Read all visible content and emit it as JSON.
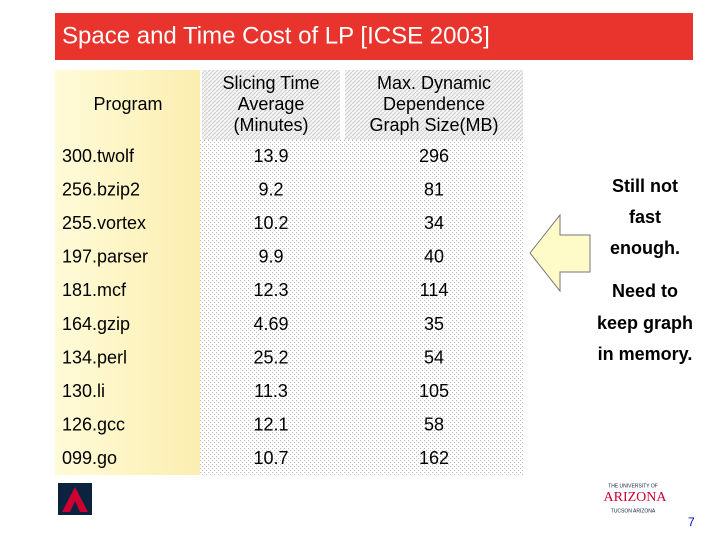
{
  "header": {
    "title": "Space and Time Cost of LP [ICSE 2003]"
  },
  "table": {
    "columns": [
      [
        "Program"
      ],
      [
        "Slicing Time",
        "Average",
        "(Minutes)"
      ],
      [
        "Max. Dynamic",
        "Dependence",
        "Graph Size(MB)"
      ]
    ],
    "rows": [
      [
        "300.twolf",
        "13.9",
        "296"
      ],
      [
        "256.bzip2",
        "9.2",
        "81"
      ],
      [
        "255.vortex",
        "10.2",
        "34"
      ],
      [
        "197.parser",
        "9.9",
        "40"
      ],
      [
        "181.mcf",
        "12.3",
        "114"
      ],
      [
        "164.gzip",
        "4.69",
        "35"
      ],
      [
        "134.perl",
        "25.2",
        "54"
      ],
      [
        "130.li",
        "11.3",
        "105"
      ],
      [
        "126.gcc",
        "12.1",
        "58"
      ],
      [
        "099.go",
        "10.7",
        "162"
      ]
    ]
  },
  "callout": {
    "lines": [
      "Still not",
      "fast",
      "enough.",
      "Need to",
      "keep graph",
      "in memory."
    ]
  },
  "logo": {
    "top": "THE UNIVERSITY OF",
    "name": "ARIZONA",
    "place": "TUCSON ARIZONA"
  },
  "page_number": "7"
}
